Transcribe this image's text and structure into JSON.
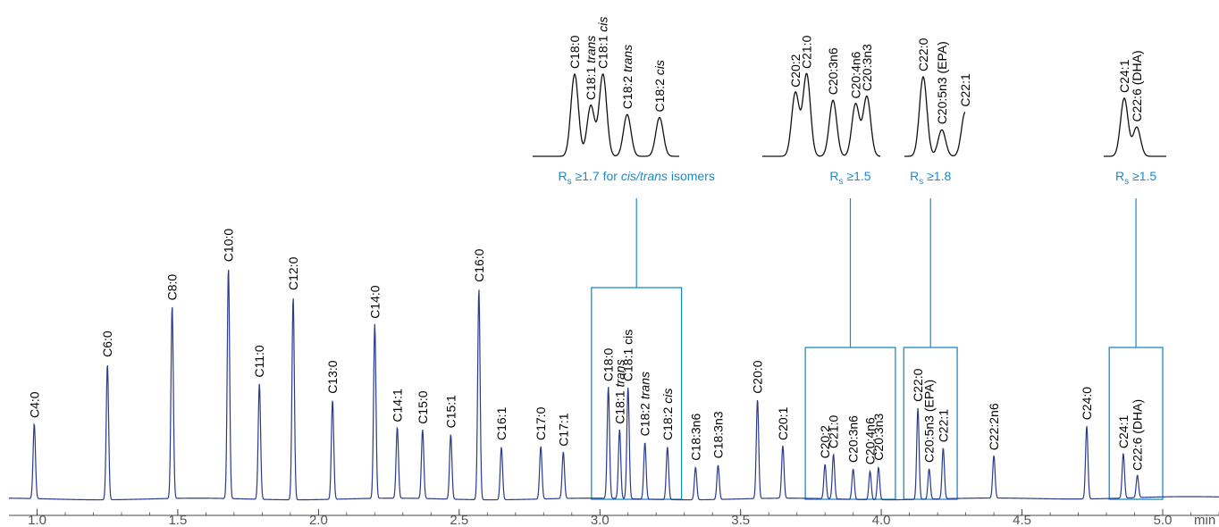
{
  "chart_data": {
    "type": "line",
    "title": "",
    "xlabel": "",
    "ylabel": "",
    "x_unit": "min",
    "xlim": [
      0.9,
      5.2
    ],
    "xticks": [
      "1.0",
      "1.5",
      "2.0",
      "2.5",
      "3.0",
      "3.5",
      "4.0",
      "4.5",
      "5.0"
    ],
    "grid": false,
    "colors": {
      "trace": "#2a3a8f",
      "callout": "#1a8bc9",
      "inset_trace": "#111111"
    },
    "peaks": [
      {
        "name": "C4:0",
        "rt": 0.99,
        "height": 0.37
      },
      {
        "name": "C6:0",
        "rt": 1.25,
        "height": 0.67
      },
      {
        "name": "C8:0",
        "rt": 1.48,
        "height": 0.95
      },
      {
        "name": "C10:0",
        "rt": 1.68,
        "height": 1.14
      },
      {
        "name": "C11:0",
        "rt": 1.79,
        "height": 0.57
      },
      {
        "name": "C12:0",
        "rt": 1.91,
        "height": 1.0
      },
      {
        "name": "C13:0",
        "rt": 2.05,
        "height": 0.49
      },
      {
        "name": "C14:0",
        "rt": 2.2,
        "height": 0.86
      },
      {
        "name": "C14:1",
        "rt": 2.28,
        "height": 0.35
      },
      {
        "name": "C15:0",
        "rt": 2.37,
        "height": 0.34
      },
      {
        "name": "C15:1",
        "rt": 2.47,
        "height": 0.32
      },
      {
        "name": "C16:0",
        "rt": 2.57,
        "height": 1.04
      },
      {
        "name": "C16:1",
        "rt": 2.65,
        "height": 0.26
      },
      {
        "name": "C17:0",
        "rt": 2.79,
        "height": 0.26
      },
      {
        "name": "C17:1",
        "rt": 2.87,
        "height": 0.23
      },
      {
        "name": "C18:0",
        "rt": 3.03,
        "height": 0.55
      },
      {
        "name": "C18:1 trans",
        "rt": 3.07,
        "height": 0.34
      },
      {
        "name": "C18:1 cis",
        "rt": 3.1,
        "height": 0.55
      },
      {
        "name": "C18:2 trans",
        "rt": 3.16,
        "height": 0.28
      },
      {
        "name": "C18:2 cis",
        "rt": 3.24,
        "height": 0.26
      },
      {
        "name": "C18:3n6",
        "rt": 3.34,
        "height": 0.16
      },
      {
        "name": "C18:3n3",
        "rt": 3.42,
        "height": 0.17
      },
      {
        "name": "C20:0",
        "rt": 3.56,
        "height": 0.49
      },
      {
        "name": "C20:1",
        "rt": 3.65,
        "height": 0.26
      },
      {
        "name": "C20:2",
        "rt": 3.8,
        "height": 0.17
      },
      {
        "name": "C21:0",
        "rt": 3.83,
        "height": 0.22
      },
      {
        "name": "C20:3n6",
        "rt": 3.9,
        "height": 0.15
      },
      {
        "name": "C20:4n6",
        "rt": 3.96,
        "height": 0.14
      },
      {
        "name": "C20:3n3",
        "rt": 3.99,
        "height": 0.16
      },
      {
        "name": "C22:0",
        "rt": 4.13,
        "height": 0.45
      },
      {
        "name": "C20:5n3 (EPA)",
        "rt": 4.17,
        "height": 0.15
      },
      {
        "name": "C22:1",
        "rt": 4.22,
        "height": 0.25
      },
      {
        "name": "C22:2n6",
        "rt": 4.4,
        "height": 0.21
      },
      {
        "name": "C24:0",
        "rt": 4.73,
        "height": 0.36
      },
      {
        "name": "C24:1",
        "rt": 4.86,
        "height": 0.22
      },
      {
        "name": "C22:6 (DHA)",
        "rt": 4.91,
        "height": 0.11
      }
    ],
    "peak_labels": [
      {
        "parts": [
          {
            "t": "C4:0"
          }
        ],
        "peak": 0
      },
      {
        "parts": [
          {
            "t": "C6:0"
          }
        ],
        "peak": 1
      },
      {
        "parts": [
          {
            "t": "C8:0"
          }
        ],
        "peak": 2
      },
      {
        "parts": [
          {
            "t": "C10:0"
          }
        ],
        "peak": 3
      },
      {
        "parts": [
          {
            "t": "C11:0"
          }
        ],
        "peak": 4
      },
      {
        "parts": [
          {
            "t": "C12:0"
          }
        ],
        "peak": 5
      },
      {
        "parts": [
          {
            "t": "C13:0"
          }
        ],
        "peak": 6
      },
      {
        "parts": [
          {
            "t": "C14:0"
          }
        ],
        "peak": 7
      },
      {
        "parts": [
          {
            "t": "C14:1"
          }
        ],
        "peak": 8
      },
      {
        "parts": [
          {
            "t": "C15:0"
          }
        ],
        "peak": 9
      },
      {
        "parts": [
          {
            "t": "C15:1"
          }
        ],
        "peak": 10
      },
      {
        "parts": [
          {
            "t": "C16:0"
          }
        ],
        "peak": 11
      },
      {
        "parts": [
          {
            "t": "C16:1"
          }
        ],
        "peak": 12
      },
      {
        "parts": [
          {
            "t": "C17:0"
          }
        ],
        "peak": 13
      },
      {
        "parts": [
          {
            "t": "C17:1"
          }
        ],
        "peak": 14
      },
      {
        "parts": [
          {
            "t": "C18:0"
          }
        ],
        "peak": 15
      },
      {
        "parts": [
          {
            "t": "C18:1 "
          },
          {
            "t": "trans",
            "i": true
          }
        ],
        "peak": 16
      },
      {
        "parts": [
          {
            "t": "C18:1 cis"
          }
        ],
        "peak": 17
      },
      {
        "parts": [
          {
            "t": "C18:2 "
          },
          {
            "t": "trans",
            "i": true
          }
        ],
        "peak": 18
      },
      {
        "parts": [
          {
            "t": "C18:2 "
          },
          {
            "t": "cis",
            "i": true
          }
        ],
        "peak": 19
      },
      {
        "parts": [
          {
            "t": "C18:3n6"
          }
        ],
        "peak": 20
      },
      {
        "parts": [
          {
            "t": "C18:3n3"
          }
        ],
        "peak": 21
      },
      {
        "parts": [
          {
            "t": "C20:0"
          }
        ],
        "peak": 22
      },
      {
        "parts": [
          {
            "t": "C20:1"
          }
        ],
        "peak": 23
      },
      {
        "parts": [
          {
            "t": "C20:2"
          }
        ],
        "peak": 24
      },
      {
        "parts": [
          {
            "t": "C21:0"
          }
        ],
        "peak": 25
      },
      {
        "parts": [
          {
            "t": "C20:3n6"
          }
        ],
        "peak": 26
      },
      {
        "parts": [
          {
            "t": "C20:4n6"
          }
        ],
        "peak": 27
      },
      {
        "parts": [
          {
            "t": "C20:3n3"
          }
        ],
        "peak": 28
      },
      {
        "parts": [
          {
            "t": "C22:0"
          }
        ],
        "peak": 29
      },
      {
        "parts": [
          {
            "t": "C20:5n3 (EPA)"
          }
        ],
        "peak": 30
      },
      {
        "parts": [
          {
            "t": "C22:1"
          }
        ],
        "peak": 31
      },
      {
        "parts": [
          {
            "t": "C22:2n6"
          }
        ],
        "peak": 32
      },
      {
        "parts": [
          {
            "t": "C24:0"
          }
        ],
        "peak": 33
      },
      {
        "parts": [
          {
            "t": "C24:1"
          }
        ],
        "peak": 34
      },
      {
        "parts": [
          {
            "t": "C22:6 (DHA)"
          }
        ],
        "peak": 35
      }
    ],
    "callouts": [
      {
        "group": "C18",
        "x_range": [
          2.97,
          3.29
        ],
        "resolution": {
          "prefix": "R",
          "sub": "s",
          "text": " ≥1.7 for ",
          "italic": "cis/trans",
          "suffix": " isomers"
        },
        "peaks": [
          15,
          16,
          17,
          18,
          19
        ],
        "inset_labels": [
          [
            {
              "t": "C18:0"
            }
          ],
          [
            {
              "t": "C18:1 "
            },
            {
              "t": "trans",
              "i": true
            }
          ],
          [
            {
              "t": "C18:1 "
            },
            {
              "t": "cis",
              "i": true
            }
          ],
          [
            {
              "t": "C18:2 "
            },
            {
              "t": "trans",
              "i": true
            }
          ],
          [
            {
              "t": "C18:2 "
            },
            {
              "t": "cis",
              "i": true
            }
          ]
        ]
      },
      {
        "group": "C20",
        "x_range": [
          3.73,
          4.05
        ],
        "resolution": {
          "prefix": "R",
          "sub": "s",
          "text": " ≥1.5"
        },
        "peaks": [
          24,
          25,
          26,
          27,
          28
        ],
        "inset_labels": [
          [
            {
              "t": "C20:2"
            }
          ],
          [
            {
              "t": "C21:0"
            }
          ],
          [
            {
              "t": "C20:3n6"
            }
          ],
          [
            {
              "t": "C20:4n6"
            }
          ],
          [
            {
              "t": "C20:3n3"
            }
          ]
        ]
      },
      {
        "group": "C22",
        "x_range": [
          4.08,
          4.27
        ],
        "resolution": {
          "prefix": "R",
          "sub": "s",
          "text": " ≥1.8"
        },
        "peaks": [
          29,
          30,
          31
        ],
        "inset_labels": [
          [
            {
              "t": "C22:0"
            }
          ],
          [
            {
              "t": "C20:5n3 (EPA)"
            }
          ],
          [
            {
              "t": "C22:1"
            }
          ]
        ]
      },
      {
        "group": "C24",
        "x_range": [
          4.81,
          5.0
        ],
        "resolution": {
          "prefix": "R",
          "sub": "s",
          "text": " ≥1.5"
        },
        "peaks": [
          34,
          35
        ],
        "inset_labels": [
          [
            {
              "t": "C24:1"
            }
          ],
          [
            {
              "t": "C22:6 (DHA)"
            }
          ]
        ]
      }
    ]
  }
}
